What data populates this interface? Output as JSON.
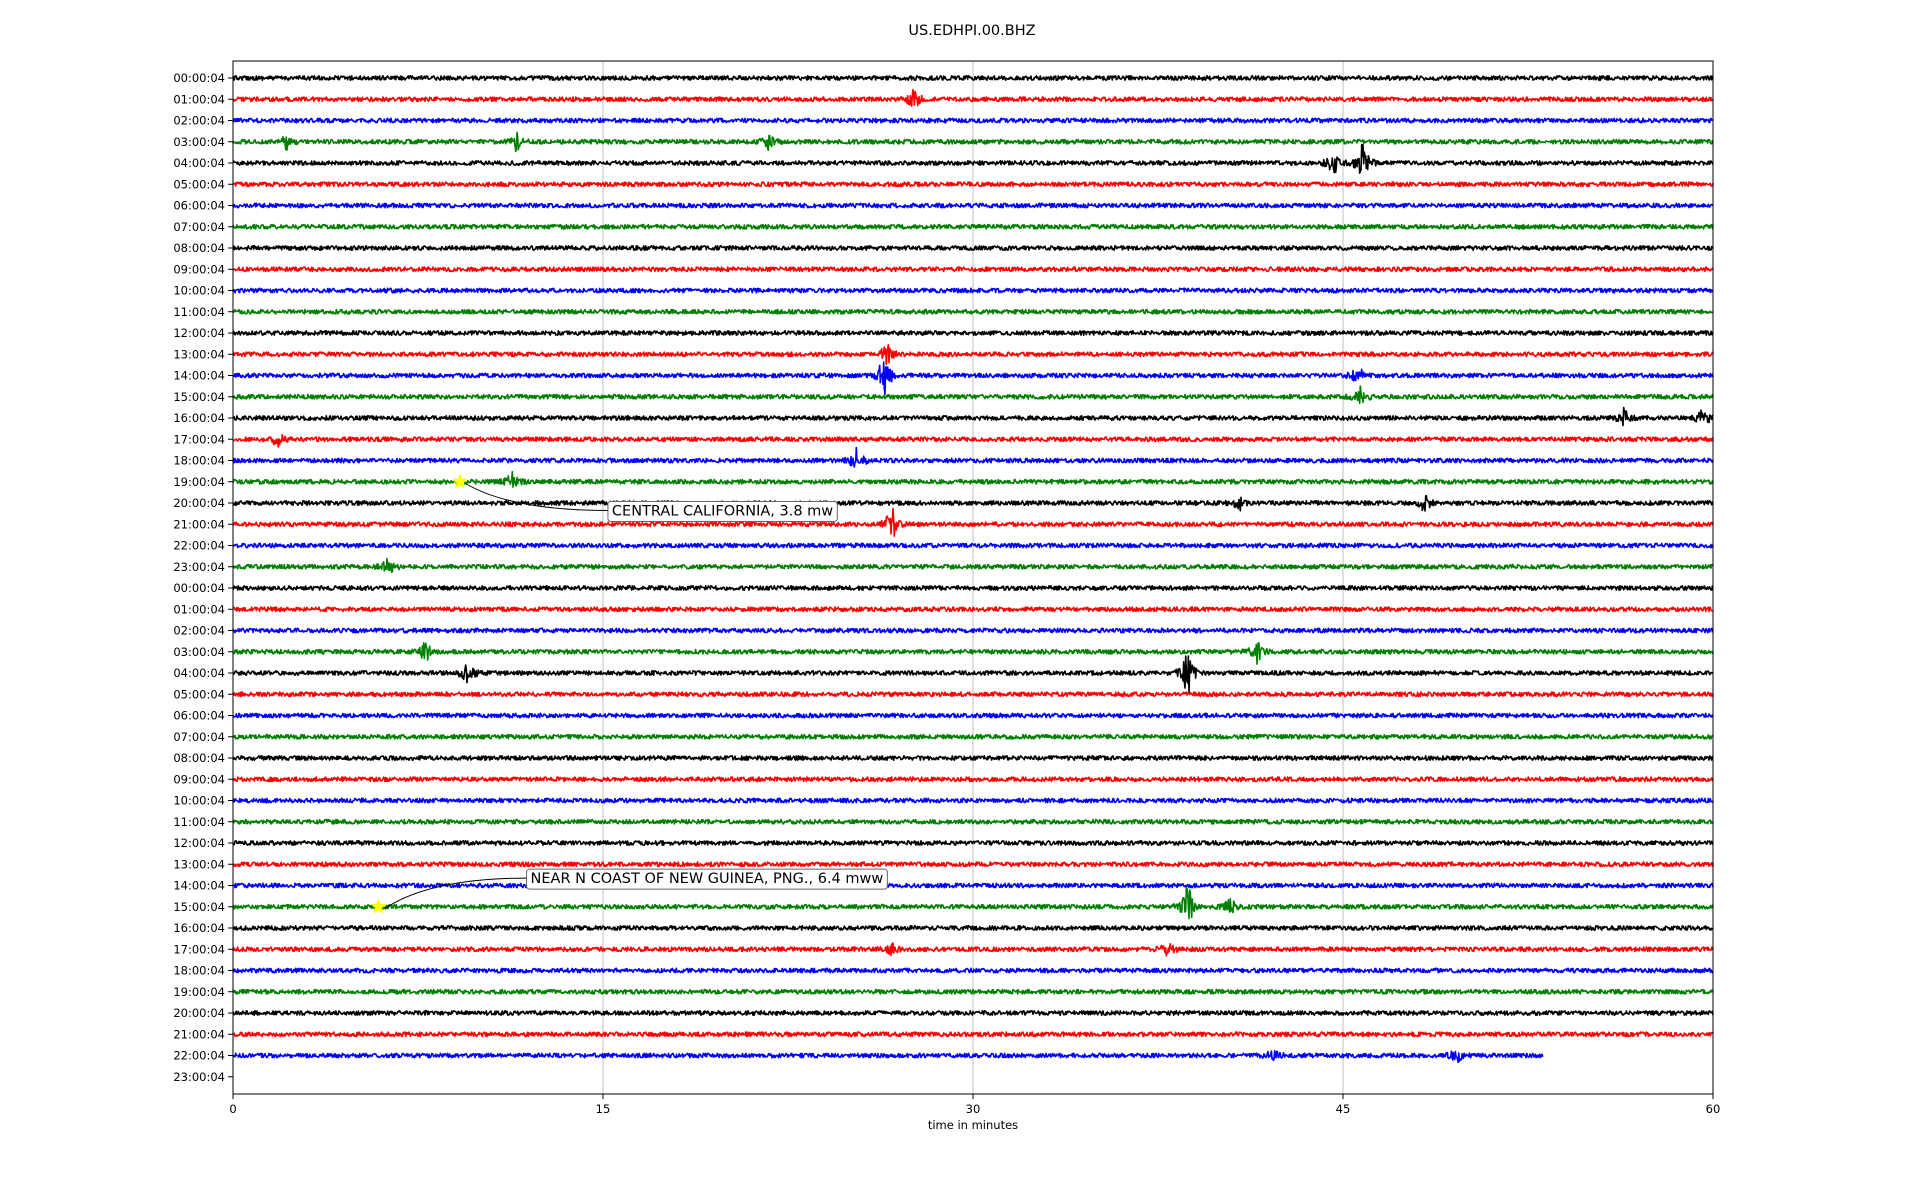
{
  "chart_data": {
    "type": "line",
    "title": "US.EDHPI.00.BHZ",
    "xlabel": "time in minutes",
    "ylabel": "",
    "xlim": [
      0,
      60
    ],
    "x_ticks": [
      0,
      15,
      30,
      45,
      60
    ],
    "x_grid": true,
    "line_colors": [
      "#000000",
      "#ff0000",
      "#0000ff",
      "#008000"
    ],
    "row_labels": [
      "00:00:04",
      "01:00:04",
      "02:00:04",
      "03:00:04",
      "04:00:04",
      "05:00:04",
      "06:00:04",
      "07:00:04",
      "08:00:04",
      "09:00:04",
      "10:00:04",
      "11:00:04",
      "12:00:04",
      "13:00:04",
      "14:00:04",
      "15:00:04",
      "16:00:04",
      "17:00:04",
      "18:00:04",
      "19:00:04",
      "20:00:04",
      "21:00:04",
      "22:00:04",
      "23:00:04",
      "00:00:04",
      "01:00:04",
      "02:00:04",
      "03:00:04",
      "04:00:04",
      "05:00:04",
      "06:00:04",
      "07:00:04",
      "08:00:04",
      "09:00:04",
      "10:00:04",
      "11:00:04",
      "12:00:04",
      "13:00:04",
      "14:00:04",
      "15:00:04",
      "16:00:04",
      "17:00:04",
      "18:00:04",
      "19:00:04",
      "20:00:04",
      "21:00:04",
      "22:00:04",
      "23:00:04"
    ],
    "rows_with_data": 47,
    "last_row_end_minute": 53.1,
    "bursts": [
      {
        "row": 1,
        "minute": 27.6,
        "amp": 0.55
      },
      {
        "row": 3,
        "minute": 2.2,
        "amp": 0.5
      },
      {
        "row": 3,
        "minute": 11.5,
        "amp": 0.5
      },
      {
        "row": 3,
        "minute": 21.7,
        "amp": 0.5
      },
      {
        "row": 4,
        "minute": 45.8,
        "amp": 1.1
      },
      {
        "row": 4,
        "minute": 44.6,
        "amp": 0.7
      },
      {
        "row": 13,
        "minute": 26.5,
        "amp": 0.6
      },
      {
        "row": 14,
        "minute": 26.4,
        "amp": 1.3
      },
      {
        "row": 14,
        "minute": 45.6,
        "amp": 0.6
      },
      {
        "row": 15,
        "minute": 45.7,
        "amp": 0.5
      },
      {
        "row": 16,
        "minute": 56.4,
        "amp": 0.5
      },
      {
        "row": 16,
        "minute": 59.6,
        "amp": 0.5
      },
      {
        "row": 17,
        "minute": 1.8,
        "amp": 0.5
      },
      {
        "row": 18,
        "minute": 25.3,
        "amp": 0.8
      },
      {
        "row": 19,
        "minute": 11.3,
        "amp": 0.5
      },
      {
        "row": 20,
        "minute": 40.8,
        "amp": 0.4
      },
      {
        "row": 20,
        "minute": 48.3,
        "amp": 0.5
      },
      {
        "row": 21,
        "minute": 26.7,
        "amp": 1.0
      },
      {
        "row": 23,
        "minute": 6.3,
        "amp": 0.5
      },
      {
        "row": 27,
        "minute": 7.8,
        "amp": 0.6
      },
      {
        "row": 27,
        "minute": 41.5,
        "amp": 0.6
      },
      {
        "row": 28,
        "minute": 38.7,
        "amp": 1.3
      },
      {
        "row": 28,
        "minute": 9.5,
        "amp": 0.7
      },
      {
        "row": 39,
        "minute": 38.7,
        "amp": 1.3
      },
      {
        "row": 39,
        "minute": 40.4,
        "amp": 0.5
      },
      {
        "row": 41,
        "minute": 26.7,
        "amp": 0.4
      },
      {
        "row": 41,
        "minute": 37.9,
        "amp": 0.4
      },
      {
        "row": 46,
        "minute": 42.2,
        "amp": 0.4
      },
      {
        "row": 46,
        "minute": 49.6,
        "amp": 0.4
      }
    ],
    "events": [
      {
        "label": "CENTRAL CALIFORNIA, 3.8 mw",
        "row": 19,
        "minute": 9.2,
        "label_row": 20.35,
        "label_minute": 15.2
      },
      {
        "label": "NEAR N COAST OF NEW GUINEA, PNG., 6.4 mww",
        "row": 39,
        "minute": 5.9,
        "label_row": 37.65,
        "label_minute": 11.9
      }
    ],
    "event_marker_color": "#ffff00"
  }
}
